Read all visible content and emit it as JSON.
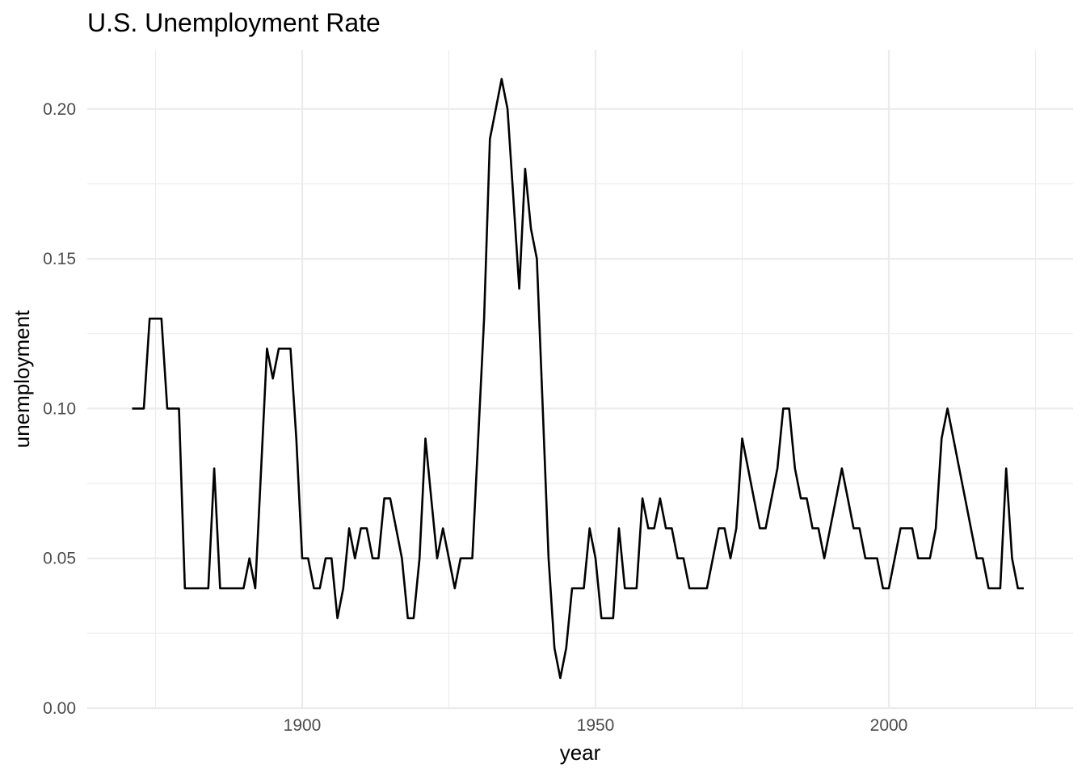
{
  "chart_data": {
    "type": "line",
    "title": "U.S. Unemployment Rate",
    "xlabel": "year",
    "ylabel": "unemployment",
    "xlim": [
      1862.5,
      2031
    ],
    "ylim": [
      0,
      0.21
    ],
    "x_major_ticks": [
      1900,
      1950,
      2000
    ],
    "x_tick_labels": [
      "1900",
      "1950",
      "2000"
    ],
    "x_minor_ticks": [
      1875,
      1925,
      1975,
      2025
    ],
    "y_major_ticks": [
      0,
      0.05,
      0.1,
      0.15,
      0.2
    ],
    "y_tick_labels": [
      "0.00",
      "0.05",
      "0.10",
      "0.15",
      "0.20"
    ],
    "y_minor_ticks": [
      0.025,
      0.075,
      0.125,
      0.175
    ],
    "grid": true,
    "line_color": "#000000",
    "grid_color": "#ebebeb",
    "series": [
      {
        "x": [
          1871,
          1872,
          1873,
          1874,
          1875,
          1876,
          1877,
          1878,
          1879,
          1880,
          1881,
          1882,
          1883,
          1884,
          1885,
          1886,
          1887,
          1888,
          1889,
          1890,
          1891,
          1892,
          1893,
          1894,
          1895,
          1896,
          1897,
          1898,
          1899,
          1900,
          1901,
          1902,
          1903,
          1904,
          1905,
          1906,
          1907,
          1908,
          1909,
          1910,
          1911,
          1912,
          1913,
          1914,
          1915,
          1916,
          1917,
          1918,
          1919,
          1920,
          1921,
          1922,
          1923,
          1924,
          1925,
          1926,
          1927,
          1928,
          1929,
          1930,
          1931,
          1932,
          1933,
          1934,
          1935,
          1936,
          1937,
          1938,
          1939,
          1940,
          1941,
          1942,
          1943,
          1944,
          1945,
          1946,
          1947,
          1948,
          1949,
          1950,
          1951,
          1952,
          1953,
          1954,
          1955,
          1956,
          1957,
          1958,
          1959,
          1960,
          1961,
          1962,
          1963,
          1964,
          1965,
          1966,
          1967,
          1968,
          1969,
          1970,
          1971,
          1972,
          1973,
          1974,
          1975,
          1976,
          1977,
          1978,
          1979,
          1980,
          1981,
          1982,
          1983,
          1984,
          1985,
          1986,
          1987,
          1988,
          1989,
          1990,
          1991,
          1992,
          1993,
          1994,
          1995,
          1996,
          1997,
          1998,
          1999,
          2000,
          2001,
          2002,
          2003,
          2004,
          2005,
          2006,
          2007,
          2008,
          2009,
          2010,
          2011,
          2012,
          2013,
          2014,
          2015,
          2016,
          2017,
          2018,
          2019,
          2020,
          2021,
          2022,
          2023
        ],
        "values": [
          0.1,
          0.1,
          0.1,
          0.13,
          0.13,
          0.13,
          0.1,
          0.1,
          0.1,
          0.04,
          0.04,
          0.04,
          0.04,
          0.04,
          0.08,
          0.04,
          0.04,
          0.04,
          0.04,
          0.04,
          0.05,
          0.04,
          0.08,
          0.12,
          0.11,
          0.12,
          0.12,
          0.12,
          0.09,
          0.05,
          0.05,
          0.04,
          0.04,
          0.05,
          0.05,
          0.03,
          0.04,
          0.06,
          0.05,
          0.06,
          0.06,
          0.05,
          0.05,
          0.07,
          0.07,
          0.06,
          0.05,
          0.03,
          0.03,
          0.05,
          0.09,
          0.07,
          0.05,
          0.06,
          0.05,
          0.04,
          0.05,
          0.05,
          0.05,
          0.09,
          0.13,
          0.19,
          0.2,
          0.21,
          0.2,
          0.17,
          0.14,
          0.18,
          0.16,
          0.15,
          0.1,
          0.05,
          0.02,
          0.01,
          0.02,
          0.04,
          0.04,
          0.04,
          0.06,
          0.05,
          0.03,
          0.03,
          0.03,
          0.06,
          0.04,
          0.04,
          0.04,
          0.07,
          0.06,
          0.06,
          0.07,
          0.06,
          0.06,
          0.05,
          0.05,
          0.04,
          0.04,
          0.04,
          0.04,
          0.05,
          0.06,
          0.06,
          0.05,
          0.06,
          0.09,
          0.08,
          0.07,
          0.06,
          0.06,
          0.07,
          0.08,
          0.1,
          0.1,
          0.08,
          0.07,
          0.07,
          0.06,
          0.06,
          0.05,
          0.06,
          0.07,
          0.08,
          0.07,
          0.06,
          0.06,
          0.05,
          0.05,
          0.05,
          0.04,
          0.04,
          0.05,
          0.06,
          0.06,
          0.06,
          0.05,
          0.05,
          0.05,
          0.06,
          0.09,
          0.1,
          0.09,
          0.08,
          0.07,
          0.06,
          0.05,
          0.05,
          0.04,
          0.04,
          0.04,
          0.08,
          0.05,
          0.04,
          0.04
        ]
      }
    ]
  }
}
